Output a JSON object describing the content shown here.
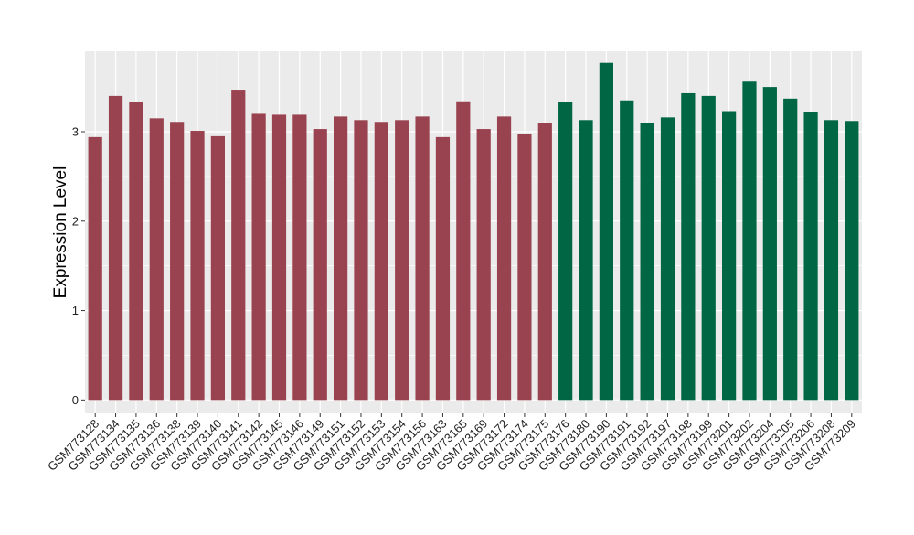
{
  "chart_data": {
    "type": "bar",
    "ylabel": "Expression Level",
    "ylim": [
      -0.15,
      3.9
    ],
    "yticks": [
      0,
      1,
      2,
      3
    ],
    "grid": true,
    "colors": {
      "group1": "#9A4350",
      "group2": "#006644",
      "panel": "#EBEBEB",
      "gridline": "#FFFFFF",
      "text": "#000000"
    },
    "categories": [
      "GSM773128",
      "GSM773134",
      "GSM773135",
      "GSM773136",
      "GSM773138",
      "GSM773139",
      "GSM773140",
      "GSM773141",
      "GSM773142",
      "GSM773145",
      "GSM773146",
      "GSM773149",
      "GSM773151",
      "GSM773152",
      "GSM773153",
      "GSM773154",
      "GSM773156",
      "GSM773163",
      "GSM773165",
      "GSM773169",
      "GSM773172",
      "GSM773174",
      "GSM773175",
      "GSM773176",
      "GSM773180",
      "GSM773190",
      "GSM773191",
      "GSM773192",
      "GSM773197",
      "GSM773198",
      "GSM773199",
      "GSM773201",
      "GSM773202",
      "GSM773204",
      "GSM773205",
      "GSM773206",
      "GSM773208",
      "GSM773209"
    ],
    "values": [
      2.94,
      3.4,
      3.33,
      3.15,
      3.11,
      3.01,
      2.95,
      3.47,
      3.2,
      3.19,
      3.19,
      3.03,
      3.17,
      3.13,
      3.11,
      3.13,
      3.17,
      2.94,
      3.34,
      3.03,
      3.17,
      2.98,
      3.1,
      3.33,
      3.13,
      3.77,
      3.35,
      3.1,
      3.16,
      3.43,
      3.4,
      3.23,
      3.56,
      3.5,
      3.37,
      3.22,
      3.13,
      3.12
    ],
    "groups": [
      1,
      1,
      1,
      1,
      1,
      1,
      1,
      1,
      1,
      1,
      1,
      1,
      1,
      1,
      1,
      1,
      1,
      1,
      1,
      1,
      1,
      1,
      1,
      2,
      2,
      2,
      2,
      2,
      2,
      2,
      2,
      2,
      2,
      2,
      2,
      2,
      2,
      2
    ]
  }
}
